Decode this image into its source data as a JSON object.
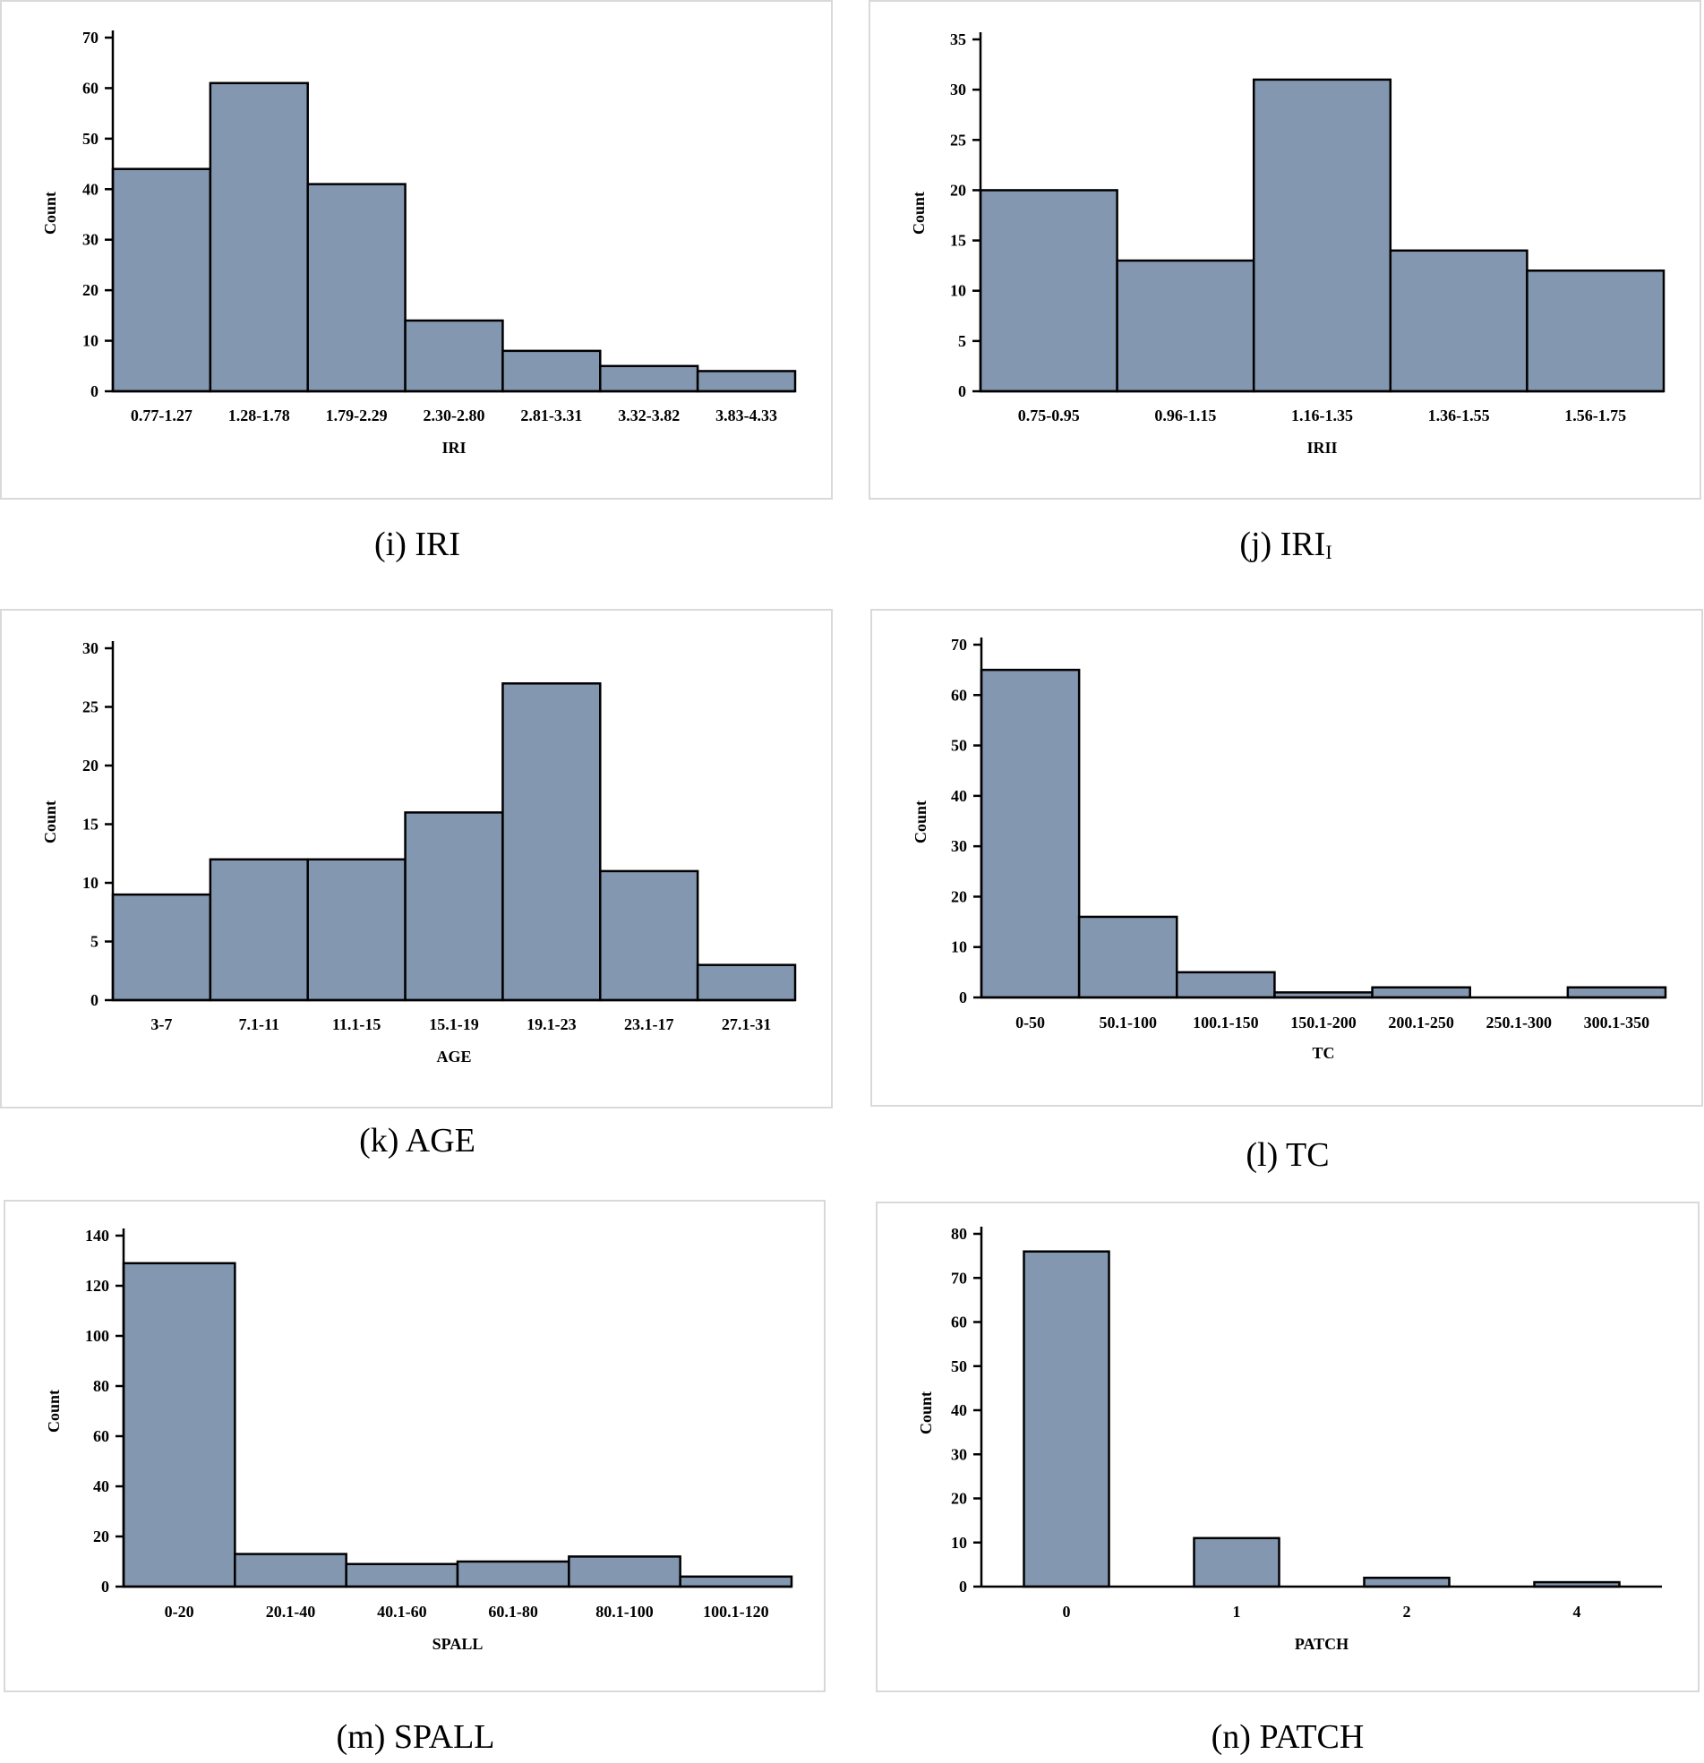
{
  "chart_data": [
    {
      "id": "i",
      "type": "bar",
      "caption": "(i) IRI",
      "caption_sub": "",
      "xlabel": "IRI",
      "ylabel": "Count",
      "ylim": [
        0,
        70
      ],
      "yticks": [
        0,
        10,
        20,
        30,
        40,
        50,
        60,
        70
      ],
      "categories": [
        "0.77-1.27",
        "1.28-1.78",
        "1.79-2.29",
        "2.30-2.80",
        "2.81-3.31",
        "3.32-3.82",
        "3.83-4.33"
      ],
      "values": [
        44,
        61,
        41,
        14,
        8,
        5,
        4
      ],
      "gap": 0
    },
    {
      "id": "j",
      "type": "bar",
      "caption": "(j) IRI",
      "caption_sub": "I",
      "xlabel": "IRII",
      "ylabel": "Count",
      "ylim": [
        0,
        35
      ],
      "yticks": [
        0,
        5,
        10,
        15,
        20,
        25,
        30,
        35
      ],
      "categories": [
        "0.75-0.95",
        "0.96-1.15",
        "1.16-1.35",
        "1.36-1.55",
        "1.56-1.75"
      ],
      "values": [
        20,
        13,
        31,
        14,
        12
      ],
      "gap": 0
    },
    {
      "id": "k",
      "type": "bar",
      "caption": "(k) AGE",
      "caption_sub": "",
      "xlabel": "AGE",
      "ylabel": "Count",
      "ylim": [
        0,
        30
      ],
      "yticks": [
        0,
        5,
        10,
        15,
        20,
        25,
        30
      ],
      "categories": [
        "3-7",
        "7.1-11",
        "11.1-15",
        "15.1-19",
        "19.1-23",
        "23.1-17",
        "27.1-31"
      ],
      "values": [
        9,
        12,
        12,
        16,
        27,
        11,
        3
      ],
      "gap": 0
    },
    {
      "id": "l",
      "type": "bar",
      "caption": "(l) TC",
      "caption_sub": "",
      "xlabel": "TC",
      "ylabel": "Count",
      "ylim": [
        0,
        70
      ],
      "yticks": [
        0,
        10,
        20,
        30,
        40,
        50,
        60,
        70
      ],
      "categories": [
        "0-50",
        "50.1-100",
        "100.1-150",
        "150.1-200",
        "200.1-250",
        "250.1-300",
        "300.1-350"
      ],
      "values": [
        65,
        16,
        5,
        1,
        2,
        0,
        2
      ],
      "gap": 0
    },
    {
      "id": "m",
      "type": "bar",
      "caption": "(m) SPALL",
      "caption_sub": "",
      "xlabel": "SPALL",
      "ylabel": "Count",
      "ylim": [
        0,
        140
      ],
      "yticks": [
        0,
        20,
        40,
        60,
        80,
        100,
        120,
        140
      ],
      "categories": [
        "0-20",
        "20.1-40",
        "40.1-60",
        "60.1-80",
        "80.1-100",
        "100.1-120"
      ],
      "values": [
        129,
        13,
        9,
        10,
        12,
        4
      ],
      "gap": 0
    },
    {
      "id": "n",
      "type": "bar",
      "caption": "(n) PATCH",
      "caption_sub": "",
      "xlabel": "PATCH",
      "ylabel": "Count",
      "ylim": [
        0,
        80
      ],
      "yticks": [
        0,
        10,
        20,
        30,
        40,
        50,
        60,
        70,
        80
      ],
      "categories": [
        "0",
        "1",
        "2",
        "4"
      ],
      "values": [
        76,
        11,
        2,
        1
      ],
      "gap": 0.5
    }
  ]
}
